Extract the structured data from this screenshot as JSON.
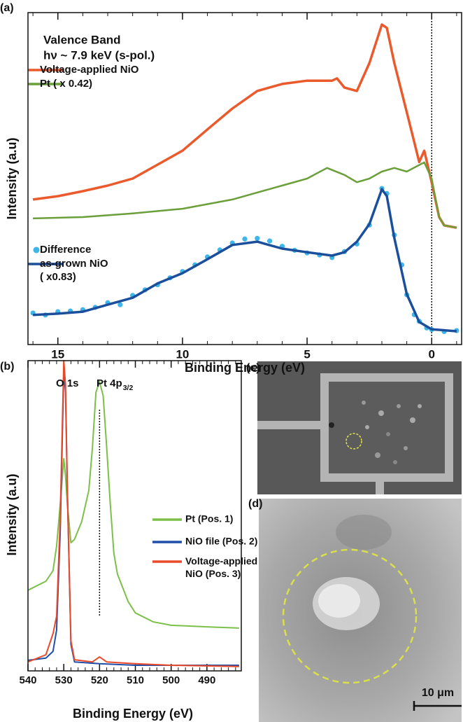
{
  "chart_data": [
    {
      "type": "line",
      "label": "(a)",
      "xlabel": "Binding Energy (eV)",
      "ylabel": "Intensity (a.u)",
      "annotations": [
        "Valence Band",
        "hν ~ 7.9 keV (s-pol.)"
      ],
      "xlim": [
        16.2,
        -1.2
      ],
      "xticks": [
        15,
        10,
        5,
        0
      ],
      "ylim": [
        0,
        100
      ],
      "vline": 0,
      "series": [
        {
          "name": "Voltage-applied NiO",
          "color": "#ea5a2c",
          "x": [
            16,
            15,
            14,
            13,
            12,
            11,
            10,
            9,
            8,
            7,
            6,
            5,
            4,
            3.8,
            3.5,
            3,
            2.5,
            2,
            1.8,
            1.5,
            1,
            0.5,
            0.3,
            0.2,
            0,
            -0.3,
            -0.5,
            -1
          ],
          "values": [
            43.7,
            44.7,
            46.2,
            47.9,
            50.0,
            54.2,
            58.4,
            64.8,
            71.1,
            76.4,
            78.5,
            79.5,
            79.5,
            80.2,
            77.4,
            76.4,
            84.8,
            96.4,
            95.4,
            84.8,
            70.0,
            55.0,
            58.4,
            55.3,
            48.9,
            38.4,
            35.9,
            35.2
          ]
        },
        {
          "name": "Pt ( x 0.42)",
          "color": "#6a9f3a",
          "x": [
            16,
            14,
            12,
            10,
            8,
            6,
            5,
            4.2,
            3.5,
            3,
            2.5,
            2,
            1.5,
            1,
            0.3,
            0,
            -0.3,
            -0.5,
            -1
          ],
          "values": [
            38.0,
            38.4,
            39.5,
            40.9,
            43.7,
            47.9,
            50.0,
            53.2,
            51.1,
            48.9,
            50.0,
            52.1,
            53.2,
            52.1,
            54.9,
            50.0,
            38.4,
            35.9,
            35.2
          ]
        },
        {
          "name": "Difference",
          "color": "#3fb6e8",
          "marker": "circle",
          "x": [
            16,
            15.5,
            15,
            14.5,
            14,
            13.5,
            13,
            12.5,
            12,
            11.5,
            11,
            10.5,
            10,
            9.5,
            9,
            8.5,
            8,
            7.5,
            7,
            6.5,
            6,
            5.5,
            5,
            4.5,
            4,
            3.5,
            3,
            2.5,
            2,
            1.8,
            1.5,
            1.2,
            1,
            0.7,
            0.5,
            0.2,
            0,
            -0.5,
            -1
          ],
          "values": [
            9.5,
            8.9,
            9.9,
            10.1,
            10.5,
            11.2,
            12.6,
            12.0,
            14.8,
            16.5,
            18.0,
            20.1,
            22.0,
            24.0,
            26.4,
            28.5,
            30.6,
            31.8,
            32.0,
            31.2,
            29.6,
            28.4,
            27.6,
            27.0,
            26.2,
            28.0,
            30.3,
            36.0,
            47.0,
            45.5,
            33.0,
            24.0,
            15.0,
            9.0,
            7.0,
            5.0,
            4.5,
            3.9,
            4.2
          ]
        },
        {
          "name": "as-grown NiO\n( x0.83)",
          "color": "#1b4f9c",
          "x": [
            16,
            15,
            14,
            13,
            12,
            11,
            10,
            9,
            8,
            7,
            6,
            5,
            4,
            3.5,
            3,
            2.5,
            2,
            1.8,
            1.5,
            1,
            0.5,
            0,
            -1
          ],
          "values": [
            8.9,
            9.3,
            9.9,
            12.0,
            14.1,
            18.4,
            21.5,
            25.7,
            30.0,
            31.0,
            28.9,
            27.8,
            26.8,
            27.8,
            31.0,
            36.3,
            46.8,
            44.7,
            32.1,
            15.2,
            6.8,
            4.6,
            4.0
          ]
        }
      ]
    },
    {
      "type": "line",
      "label": "(b)",
      "xlabel": "Binding Energy (eV)",
      "ylabel": "Intensity (a.u)",
      "annotations": [
        "O 1s",
        {
          "text": "Pt 4p",
          "sub": "3/2"
        }
      ],
      "xlim": [
        540,
        480.4
      ],
      "xticks": [
        540,
        530,
        520,
        510,
        500,
        490
      ],
      "ylim": [
        0,
        100
      ],
      "vline": 520,
      "series": [
        {
          "name": "Pt (Pos. 1)",
          "color": "#7cc04a",
          "x": [
            540,
            535,
            533,
            532,
            531,
            530,
            529.5,
            529,
            528,
            527,
            525,
            523,
            522,
            521,
            520,
            519,
            518,
            517,
            516,
            515,
            512,
            510,
            505,
            500,
            490,
            481
          ],
          "values": [
            26.0,
            28.9,
            32.3,
            40.2,
            53.7,
            68.4,
            62.8,
            53.7,
            41.3,
            42.4,
            48.1,
            58.2,
            71.8,
            89.8,
            93.2,
            88.7,
            71.8,
            53.7,
            37.9,
            31.2,
            22.3,
            18.7,
            15.8,
            14.7,
            14.2,
            13.8
          ]
        },
        {
          "name": "NiO file (Pos. 2)",
          "color": "#1f4fa8",
          "x": [
            540,
            535,
            533,
            532,
            531,
            530,
            529.5,
            529,
            528,
            527,
            520,
            510,
            500,
            481
          ],
          "values": [
            3.4,
            4.1,
            6.3,
            13.1,
            44.7,
            96.6,
            89.8,
            58.2,
            8.6,
            2.9,
            2.3,
            1.8,
            1.8,
            1.8
          ]
        },
        {
          "name": "Voltage-applied\nNiO (Pos. 3)",
          "color": "#ea4a2a",
          "x": [
            540,
            535,
            533,
            532,
            531,
            530,
            529.5,
            529,
            528,
            527,
            522,
            520,
            518,
            510,
            500,
            481
          ],
          "values": [
            2.9,
            5.2,
            12.0,
            17.6,
            49.2,
            100,
            92.1,
            58.2,
            9.7,
            3.6,
            2.9,
            4.5,
            2.9,
            2.3,
            1.8,
            1.4
          ]
        }
      ]
    }
  ],
  "images": {
    "c": {
      "label": "(c)"
    },
    "d": {
      "label": "(d)",
      "scale_bar": "10 μm"
    }
  }
}
